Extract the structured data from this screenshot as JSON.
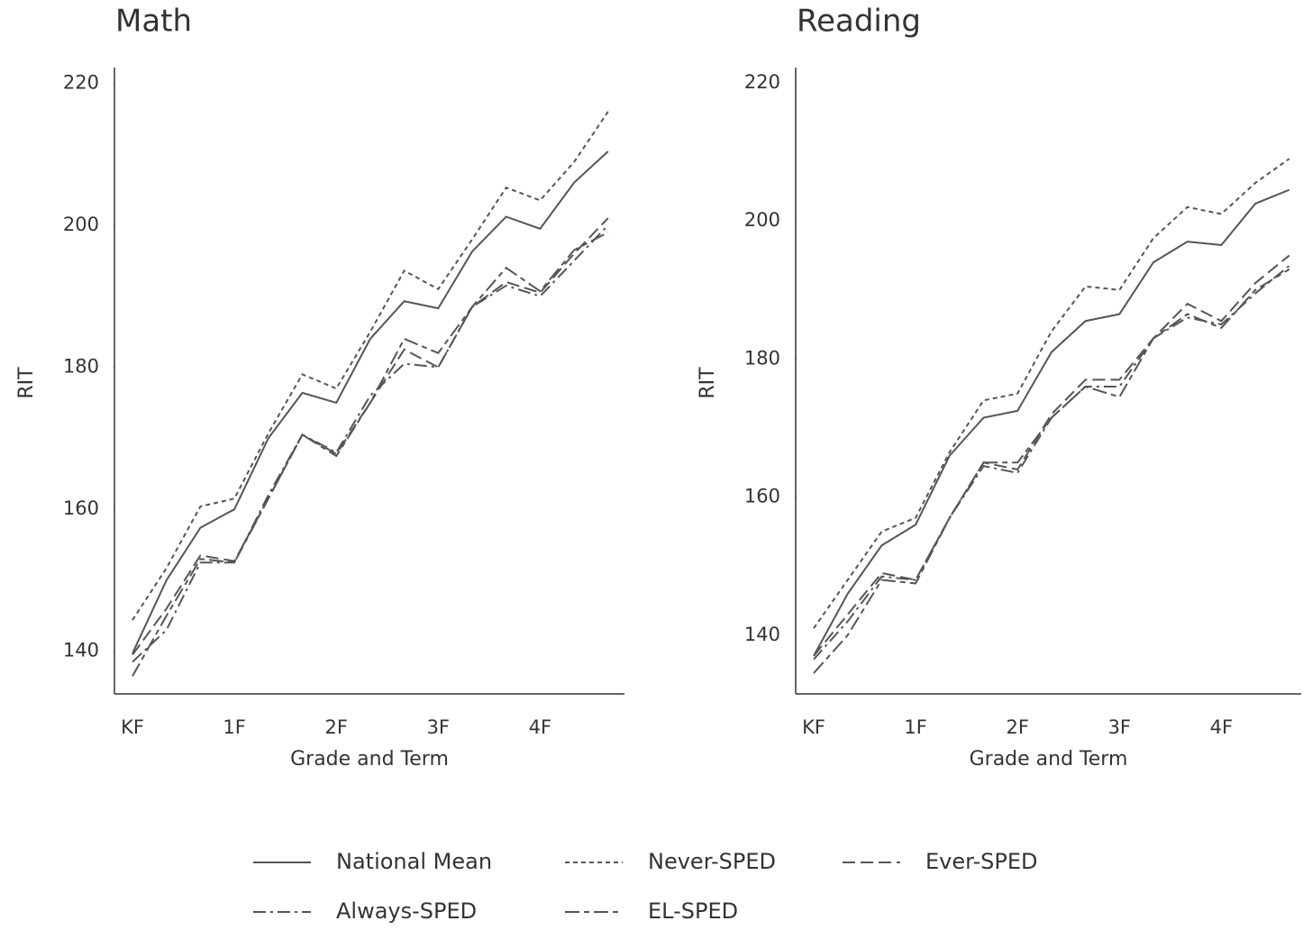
{
  "chart_data": [
    {
      "type": "line",
      "title": "Math",
      "ylabel": "RIT",
      "xlabel": "Grade and Term",
      "categories": [
        "KF",
        null,
        null,
        "1F",
        null,
        null,
        "2F",
        null,
        null,
        "3F",
        null,
        null,
        "4F",
        null,
        null
      ],
      "ylim": [
        134,
        222.2
      ],
      "yticks": [
        140,
        160,
        180,
        200,
        220
      ],
      "series": [
        {
          "name": "National Mean",
          "color": "#555555",
          "dash": "none",
          "values": [
            139.7,
            150,
            157.4,
            160,
            170,
            176.4,
            175,
            184,
            189.3,
            188.3,
            196.3,
            201.2,
            199.5,
            206,
            210.4
          ]
        },
        {
          "name": "Never-SPED",
          "color": "#555555",
          "dash": "5,4",
          "values": [
            144.4,
            151.7,
            160.4,
            161.5,
            170.7,
            179,
            177,
            185,
            193.6,
            191,
            198,
            205.3,
            203.5,
            208.9,
            216
          ]
        },
        {
          "name": "Ever-SPED",
          "color": "#555555",
          "dash": "14,6",
          "values": [
            139.5,
            146,
            153.5,
            152.7,
            161.5,
            170.5,
            167.8,
            175,
            182.5,
            180,
            188.5,
            192,
            190.5,
            196,
            201
          ]
        },
        {
          "name": "Always-SPED",
          "color": "#555555",
          "dash": "14,5,3,5",
          "values": [
            138.5,
            143,
            152.5,
            152.5,
            162,
            170.5,
            168,
            176,
            180.5,
            180,
            188.5,
            191.5,
            190,
            195,
            200
          ]
        },
        {
          "name": "EL-SPED",
          "color": "#555555",
          "dash": "16,5,6,5",
          "values": [
            136.5,
            145,
            153,
            152.5,
            161.5,
            170.5,
            167.5,
            175,
            184,
            182,
            188.5,
            194,
            190.7,
            196.5,
            199
          ]
        }
      ]
    },
    {
      "type": "line",
      "title": "Reading",
      "ylabel": "RIT",
      "xlabel": "Grade and Term",
      "categories": [
        "KF",
        null,
        null,
        "1F",
        null,
        null,
        "2F",
        null,
        null,
        "3F",
        null,
        null,
        "4F",
        null,
        null
      ],
      "ylim": [
        131.5,
        222.2
      ],
      "yticks": [
        140,
        160,
        180,
        200,
        220
      ],
      "series": [
        {
          "color": "#555555",
          "dash": "none",
          "values": [
            137,
            146,
            153,
            156,
            166,
            171.5,
            172.5,
            181,
            185.5,
            186.5,
            194,
            197,
            196.5,
            202.5,
            204.5
          ]
        },
        {
          "color": "#555555",
          "dash": "5,4",
          "values": [
            141,
            148,
            155,
            157,
            166.5,
            174,
            175,
            184,
            190.5,
            190,
            197.5,
            202,
            201,
            205.5,
            209
          ]
        },
        {
          "color": "#555555",
          "dash": "14,6",
          "values": [
            137,
            143,
            149,
            148,
            157,
            165,
            164,
            172,
            177,
            177,
            183,
            188,
            185.5,
            191,
            195
          ]
        },
        {
          "color": "#555555",
          "dash": "14,5,3,5",
          "values": [
            136.5,
            142,
            148.5,
            148,
            157,
            164.5,
            163.5,
            171.5,
            176,
            176,
            183,
            186,
            185,
            189.5,
            193.5
          ]
        },
        {
          "color": "#555555",
          "dash": "16,5,6,5",
          "values": [
            134.5,
            140,
            148,
            147.5,
            157,
            165,
            165,
            171.5,
            176,
            174.5,
            183,
            186.5,
            184.5,
            190,
            193
          ]
        }
      ]
    }
  ]
}
